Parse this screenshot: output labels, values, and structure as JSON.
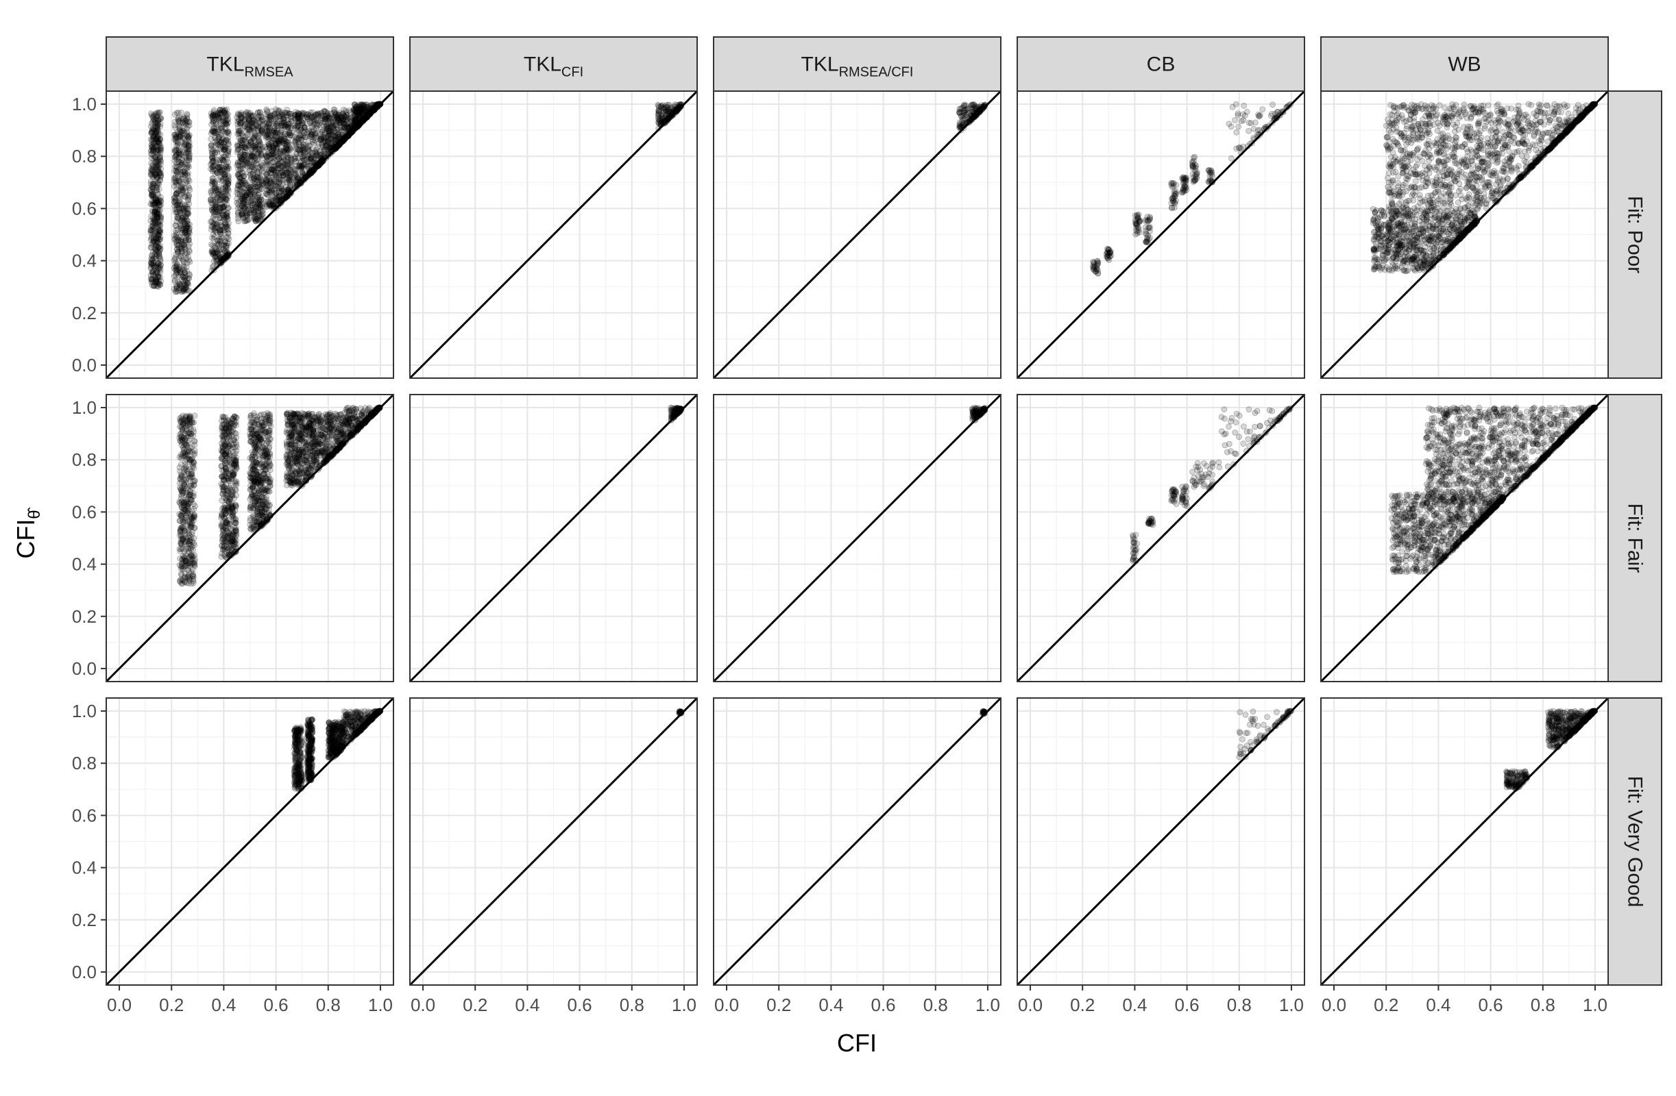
{
  "figure": {
    "xlabel": "CFI",
    "ylabel": "CFI",
    "ylabel_subscript": "θ̂"
  },
  "chart_data": {
    "type": "scatter",
    "layout": "facet_grid",
    "xlim": [
      -0.05,
      1.05
    ],
    "ylim": [
      -0.05,
      1.05
    ],
    "xticks": [
      0.0,
      0.2,
      0.4,
      0.6,
      0.8,
      1.0
    ],
    "yticks": [
      0.0,
      0.2,
      0.4,
      0.6,
      0.8,
      1.0
    ],
    "xtick_labels": [
      "0.0",
      "0.2",
      "0.4",
      "0.6",
      "0.8",
      "1.0"
    ],
    "ytick_labels": [
      "0.0",
      "0.2",
      "0.4",
      "0.6",
      "0.8",
      "1.0"
    ],
    "grid": true,
    "reference_line": "identity",
    "columns": [
      {
        "label": "TKL",
        "sub": "RMSEA"
      },
      {
        "label": "TKL",
        "sub": "CFI"
      },
      {
        "label": "TKL",
        "sub": "RMSEA/CFI"
      },
      {
        "label": "CB",
        "sub": ""
      },
      {
        "label": "WB",
        "sub": ""
      }
    ],
    "rows": [
      "Fit: Poor",
      "Fit: Fair",
      "Fit: Very Good"
    ],
    "panels": [
      [
        {
          "clusters": [
            {
              "x": [
                0.12,
                0.16
              ],
              "y": [
                0.3,
                0.97
              ],
              "n": 500
            },
            {
              "x": [
                0.21,
                0.27
              ],
              "y": [
                0.28,
                0.97
              ],
              "n": 500
            },
            {
              "x": [
                0.35,
                0.42
              ],
              "y": [
                0.36,
                0.98
              ],
              "n": 550
            },
            {
              "x": [
                0.45,
                0.55
              ],
              "y": [
                0.55,
                0.97
              ],
              "n": 550
            },
            {
              "x": [
                0.56,
                0.66
              ],
              "y": [
                0.6,
                0.98
              ],
              "n": 550
            },
            {
              "x": [
                0.67,
                0.78
              ],
              "y": [
                0.65,
                0.97
              ],
              "n": 450
            },
            {
              "x": [
                0.78,
                0.92
              ],
              "y": [
                0.78,
                0.98
              ],
              "n": 500
            },
            {
              "x": [
                0.9,
                1.0
              ],
              "y": [
                0.9,
                1.0
              ],
              "n": 350
            }
          ]
        },
        {
          "clusters": [
            {
              "x": [
                0.9,
                0.99
              ],
              "y": [
                0.9,
                1.0
              ],
              "n": 160
            }
          ]
        },
        {
          "clusters": [
            {
              "x": [
                0.89,
                0.99
              ],
              "y": [
                0.89,
                1.0
              ],
              "n": 160
            }
          ]
        },
        {
          "clusters": [
            {
              "x": [
                0.24,
                0.26
              ],
              "y": [
                0.35,
                0.4
              ],
              "n": 25
            },
            {
              "x": [
                0.29,
                0.31
              ],
              "y": [
                0.4,
                0.45
              ],
              "n": 25
            },
            {
              "x": [
                0.4,
                0.42
              ],
              "y": [
                0.5,
                0.58
              ],
              "n": 30
            },
            {
              "x": [
                0.44,
                0.46
              ],
              "y": [
                0.47,
                0.57
              ],
              "n": 30
            },
            {
              "x": [
                0.54,
                0.56
              ],
              "y": [
                0.6,
                0.7
              ],
              "n": 30
            },
            {
              "x": [
                0.58,
                0.6
              ],
              "y": [
                0.65,
                0.72
              ],
              "n": 30
            },
            {
              "x": [
                0.62,
                0.64
              ],
              "y": [
                0.7,
                0.8
              ],
              "n": 30
            },
            {
              "x": [
                0.68,
                0.7
              ],
              "y": [
                0.7,
                0.75
              ],
              "n": 20
            },
            {
              "x": [
                0.76,
                1.0
              ],
              "y": [
                0.78,
                1.0
              ],
              "n": 80
            }
          ]
        },
        {
          "clusters": [
            {
              "x": [
                0.15,
                0.55
              ],
              "y": [
                0.36,
                0.6
              ],
              "n": 900
            },
            {
              "x": [
                0.2,
                1.0
              ],
              "y": [
                0.6,
                1.0
              ],
              "n": 1500
            }
          ]
        }
      ],
      [
        {
          "clusters": [
            {
              "x": [
                0.23,
                0.29
              ],
              "y": [
                0.32,
                0.97
              ],
              "n": 450
            },
            {
              "x": [
                0.39,
                0.45
              ],
              "y": [
                0.42,
                0.97
              ],
              "n": 450
            },
            {
              "x": [
                0.5,
                0.58
              ],
              "y": [
                0.52,
                0.98
              ],
              "n": 500
            },
            {
              "x": [
                0.64,
                0.74
              ],
              "y": [
                0.7,
                0.98
              ],
              "n": 450
            },
            {
              "x": [
                0.74,
                0.86
              ],
              "y": [
                0.75,
                0.98
              ],
              "n": 400
            },
            {
              "x": [
                0.86,
                1.0
              ],
              "y": [
                0.86,
                1.0
              ],
              "n": 300
            }
          ]
        },
        {
          "clusters": [
            {
              "x": [
                0.95,
                0.99
              ],
              "y": [
                0.95,
                1.0
              ],
              "n": 100
            }
          ]
        },
        {
          "clusters": [
            {
              "x": [
                0.94,
                0.99
              ],
              "y": [
                0.95,
                1.0
              ],
              "n": 100
            }
          ]
        },
        {
          "clusters": [
            {
              "x": [
                0.39,
                0.41
              ],
              "y": [
                0.41,
                0.52
              ],
              "n": 25
            },
            {
              "x": [
                0.45,
                0.47
              ],
              "y": [
                0.55,
                0.58
              ],
              "n": 20
            },
            {
              "x": [
                0.54,
                0.56
              ],
              "y": [
                0.63,
                0.69
              ],
              "n": 25
            },
            {
              "x": [
                0.58,
                0.6
              ],
              "y": [
                0.62,
                0.7
              ],
              "n": 25
            },
            {
              "x": [
                0.62,
                0.7
              ],
              "y": [
                0.68,
                0.79
              ],
              "n": 40
            },
            {
              "x": [
                0.72,
                1.0
              ],
              "y": [
                0.76,
                1.0
              ],
              "n": 80
            }
          ]
        },
        {
          "clusters": [
            {
              "x": [
                0.22,
                0.65
              ],
              "y": [
                0.37,
                0.67
              ],
              "n": 900
            },
            {
              "x": [
                0.35,
                1.0
              ],
              "y": [
                0.63,
                1.0
              ],
              "n": 1300
            }
          ]
        }
      ],
      [
        {
          "clusters": [
            {
              "x": [
                0.67,
                0.7
              ],
              "y": [
                0.7,
                0.94
              ],
              "n": 250
            },
            {
              "x": [
                0.72,
                0.74
              ],
              "y": [
                0.73,
                0.97
              ],
              "n": 250
            },
            {
              "x": [
                0.8,
                0.86
              ],
              "y": [
                0.82,
                0.96
              ],
              "n": 300
            },
            {
              "x": [
                0.86,
                1.0
              ],
              "y": [
                0.87,
                1.0
              ],
              "n": 350
            }
          ]
        },
        {
          "clusters": [
            {
              "x": [
                0.98,
                0.99
              ],
              "y": [
                0.99,
                1.0
              ],
              "n": 20
            }
          ]
        },
        {
          "clusters": [
            {
              "x": [
                0.98,
                0.99
              ],
              "y": [
                0.99,
                1.0
              ],
              "n": 20
            }
          ]
        },
        {
          "clusters": [
            {
              "x": [
                0.8,
                1.0
              ],
              "y": [
                0.81,
                1.0
              ],
              "n": 80
            }
          ]
        },
        {
          "clusters": [
            {
              "x": [
                0.66,
                0.74
              ],
              "y": [
                0.7,
                0.77
              ],
              "n": 120
            },
            {
              "x": [
                0.82,
                1.0
              ],
              "y": [
                0.86,
                1.0
              ],
              "n": 500
            }
          ]
        }
      ]
    ]
  }
}
